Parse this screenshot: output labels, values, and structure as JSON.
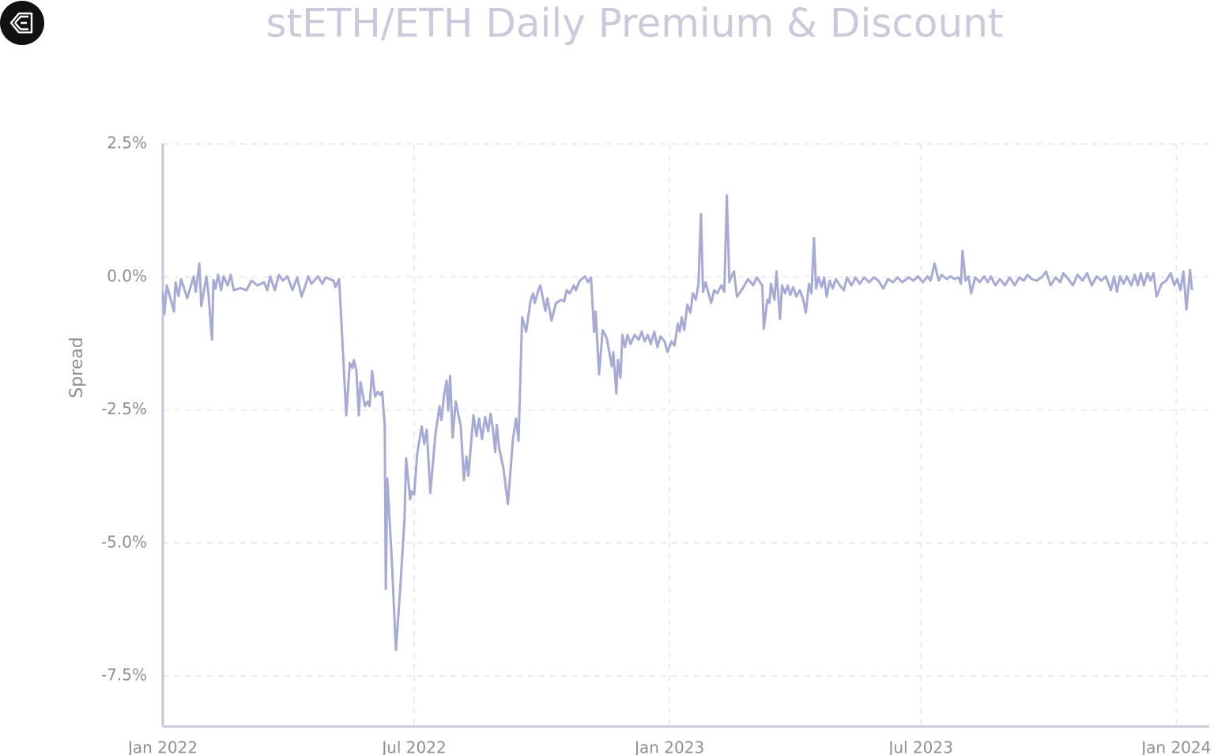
{
  "chart_data": {
    "type": "line",
    "title": "stETH/ETH Daily Premium & Discount",
    "y_label": "Spread",
    "color": "#a5aad6",
    "grid": true,
    "xlim": [
      2022.0,
      2024.065
    ],
    "xticks": [
      {
        "value": 2022.0,
        "label": "Jan 2022"
      },
      {
        "value": 2022.496,
        "label": "Jul 2022"
      },
      {
        "value": 2023.0,
        "label": "Jan 2023"
      },
      {
        "value": 2023.496,
        "label": "Jul 2023"
      },
      {
        "value": 2024.0,
        "label": "Jan 2024"
      }
    ],
    "ylim": [
      -8.45,
      2.5
    ],
    "yticks": [
      {
        "value": 2.5,
        "label": "2.5%"
      },
      {
        "value": 0,
        "label": "0.0%"
      },
      {
        "value": -2.5,
        "label": "-2.5%"
      },
      {
        "value": -5,
        "label": "-5.0%"
      },
      {
        "value": -7.5,
        "label": "-7.5%"
      }
    ],
    "x": [
      2022.0,
      2022.003,
      2022.008,
      2022.022,
      2022.025,
      2022.031,
      2022.036,
      2022.048,
      2022.061,
      2022.065,
      2022.072,
      2022.076,
      2022.086,
      2022.09,
      2022.097,
      2022.1,
      2022.104,
      2022.109,
      2022.115,
      2022.12,
      2022.128,
      2022.134,
      2022.14,
      2022.153,
      2022.165,
      2022.175,
      2022.187,
      2022.2,
      2022.206,
      2022.212,
      2022.221,
      2022.229,
      2022.237,
      2022.246,
      2022.256,
      2022.265,
      2022.274,
      2022.287,
      2022.293,
      2022.306,
      2022.315,
      2022.321,
      2022.337,
      2022.341,
      2022.348,
      2022.362,
      2022.369,
      2022.374,
      2022.377,
      2022.382,
      2022.387,
      2022.39,
      2022.399,
      2022.404,
      2022.408,
      2022.413,
      2022.419,
      2022.424,
      2022.429,
      2022.433,
      2022.438,
      2022.44,
      2022.443,
      2022.452,
      2022.46,
      2022.469,
      2022.477,
      2022.48,
      2022.488,
      2022.491,
      2022.496,
      2022.502,
      2022.511,
      2022.516,
      2022.521,
      2022.528,
      2022.538,
      2022.546,
      2022.55,
      2022.555,
      2022.56,
      2022.563,
      2022.567,
      2022.572,
      2022.578,
      2022.588,
      2022.594,
      2022.599,
      2022.603,
      2022.613,
      2022.619,
      2022.624,
      2022.63,
      2022.636,
      2022.642,
      2022.647,
      2022.652,
      2022.656,
      2022.659,
      2022.664,
      2022.672,
      2022.681,
      2022.691,
      2022.697,
      2022.702,
      2022.709,
      2022.717,
      2022.726,
      2022.731,
      2022.734,
      2022.741,
      2022.745,
      2022.755,
      2022.759,
      2022.767,
      2022.776,
      2022.786,
      2022.792,
      2022.797,
      2022.803,
      2022.811,
      2022.815,
      2022.823,
      2022.833,
      2022.839,
      2022.845,
      2022.851,
      2022.854,
      2022.861,
      2022.868,
      2022.876,
      2022.886,
      2022.889,
      2022.895,
      2022.898,
      2022.903,
      2022.907,
      2022.912,
      2022.917,
      2022.923,
      2022.931,
      2022.939,
      2022.945,
      2022.951,
      2022.957,
      2022.963,
      2022.97,
      2022.976,
      2022.982,
      2022.99,
      2022.996,
      2023.004,
      2023.01,
      2023.016,
      2023.02,
      2023.024,
      2023.029,
      2023.035,
      2023.041,
      2023.046,
      2023.052,
      2023.057,
      2023.062,
      2023.066,
      2023.071,
      2023.077,
      2023.082,
      2023.088,
      2023.094,
      2023.102,
      2023.108,
      2023.113,
      2023.118,
      2023.122,
      2023.127,
      2023.133,
      2023.144,
      2023.155,
      2023.165,
      2023.172,
      2023.183,
      2023.186,
      2023.193,
      2023.197,
      2023.2,
      2023.207,
      2023.211,
      2023.218,
      2023.222,
      2023.228,
      2023.233,
      2023.238,
      2023.244,
      2023.25,
      2023.257,
      2023.263,
      2023.269,
      2023.275,
      2023.28,
      2023.285,
      2023.289,
      2023.294,
      2023.3,
      2023.305,
      2023.31,
      2023.316,
      2023.322,
      2023.328,
      2023.336,
      2023.344,
      2023.35,
      2023.359,
      2023.367,
      2023.375,
      2023.384,
      2023.394,
      2023.403,
      2023.412,
      2023.422,
      2023.431,
      2023.441,
      2023.45,
      2023.459,
      2023.472,
      2023.481,
      2023.49,
      2023.5,
      2023.509,
      2023.515,
      2023.523,
      2023.531,
      2023.537,
      2023.547,
      2023.554,
      2023.562,
      2023.57,
      2023.575,
      2023.578,
      2023.584,
      2023.59,
      2023.595,
      2023.603,
      2023.612,
      2023.621,
      2023.628,
      2023.634,
      2023.643,
      2023.652,
      2023.662,
      2023.671,
      2023.681,
      2023.69,
      2023.699,
      2023.706,
      2023.715,
      2023.724,
      2023.734,
      2023.743,
      2023.752,
      2023.762,
      2023.771,
      2023.777,
      2023.787,
      2023.796,
      2023.805,
      2023.815,
      2023.824,
      2023.833,
      2023.843,
      2023.852,
      2023.861,
      2023.871,
      2023.877,
      2023.883,
      2023.889,
      2023.896,
      2023.902,
      2023.911,
      2023.918,
      2023.924,
      2023.93,
      2023.936,
      2023.943,
      2023.949,
      2023.955,
      2023.961,
      2023.971,
      2023.98,
      2023.989,
      2023.996,
      2024.002,
      2024.008,
      2024.014,
      2024.02,
      2024.027,
      2024.031
    ],
    "values": [
      -0.28,
      -0.7,
      -0.16,
      -0.65,
      -0.1,
      -0.36,
      -0.04,
      -0.4,
      0.01,
      -0.28,
      0.25,
      -0.55,
      0.01,
      -0.31,
      -1.18,
      -0.06,
      -0.22,
      0.04,
      -0.25,
      0.01,
      -0.16,
      0.04,
      -0.25,
      -0.21,
      -0.25,
      -0.07,
      -0.16,
      -0.1,
      -0.25,
      0.01,
      -0.25,
      0.04,
      -0.07,
      0.01,
      -0.25,
      -0.01,
      -0.37,
      0.01,
      -0.13,
      0.01,
      -0.13,
      -0.01,
      -0.07,
      -0.19,
      -0.04,
      -2.6,
      -1.62,
      -1.71,
      -1.56,
      -1.77,
      -2.6,
      -1.98,
      -2.43,
      -2.34,
      -2.43,
      -1.77,
      -2.25,
      -2.16,
      -2.22,
      -2.16,
      -2.81,
      -5.86,
      -3.79,
      -5.34,
      -7.01,
      -5.79,
      -4.54,
      -3.41,
      -4.18,
      -4.03,
      -4.09,
      -3.32,
      -2.81,
      -3.14,
      -2.87,
      -4.06,
      -2.96,
      -2.43,
      -2.69,
      -2.22,
      -1.95,
      -2.51,
      -1.86,
      -3.02,
      -2.34,
      -2.81,
      -3.82,
      -3.38,
      -3.74,
      -2.6,
      -2.99,
      -2.66,
      -3.05,
      -2.63,
      -2.9,
      -2.57,
      -2.9,
      -3.29,
      -2.78,
      -3.23,
      -3.59,
      -4.27,
      -3.05,
      -2.66,
      -3.08,
      -0.76,
      -1.03,
      -0.43,
      -0.31,
      -0.49,
      -0.25,
      -0.16,
      -0.64,
      -0.4,
      -0.82,
      -0.49,
      -0.43,
      -0.46,
      -0.25,
      -0.31,
      -0.16,
      -0.25,
      -0.07,
      0.01,
      -0.1,
      -0.01,
      -1.03,
      -0.65,
      -1.83,
      -1.0,
      -1.15,
      -1.68,
      -1.41,
      -2.19,
      -1.56,
      -1.89,
      -1.09,
      -1.32,
      -1.09,
      -1.26,
      -1.09,
      -1.18,
      -1.03,
      -1.21,
      -1.09,
      -1.26,
      -1.03,
      -1.32,
      -1.12,
      -1.21,
      -1.41,
      -1.21,
      -1.29,
      -0.88,
      -1.03,
      -0.76,
      -1.0,
      -0.52,
      -0.67,
      -0.31,
      -0.43,
      -0.13,
      1.18,
      -0.28,
      -0.1,
      -0.31,
      -0.49,
      -0.25,
      -0.31,
      -0.16,
      -0.28,
      1.53,
      -0.1,
      0.01,
      0.1,
      -0.37,
      -0.22,
      -0.04,
      -0.16,
      -0.01,
      -0.16,
      -0.97,
      -0.43,
      -0.49,
      -0.13,
      -0.43,
      0.1,
      -0.79,
      -0.16,
      -0.31,
      -0.16,
      -0.34,
      -0.19,
      -0.37,
      -0.25,
      -0.4,
      -0.67,
      -0.13,
      -0.31,
      0.73,
      -0.22,
      -0.01,
      -0.19,
      -0.01,
      -0.37,
      -0.07,
      -0.22,
      -0.04,
      -0.16,
      -0.25,
      -0.01,
      -0.16,
      -0.01,
      -0.13,
      -0.01,
      -0.1,
      -0.01,
      -0.07,
      -0.22,
      -0.04,
      -0.1,
      -0.01,
      -0.1,
      -0.01,
      -0.07,
      0.01,
      -0.1,
      0.01,
      -0.07,
      0.25,
      -0.07,
      0.04,
      -0.04,
      0.01,
      -0.04,
      -0.01,
      -0.13,
      0.49,
      -0.07,
      0.01,
      -0.31,
      -0.01,
      -0.1,
      0.01,
      -0.1,
      0.01,
      -0.16,
      -0.04,
      -0.16,
      -0.01,
      -0.16,
      -0.01,
      -0.07,
      0.04,
      -0.04,
      -0.07,
      -0.01,
      0.1,
      -0.16,
      -0.01,
      -0.1,
      0.07,
      -0.04,
      -0.16,
      0.04,
      -0.07,
      0.07,
      -0.16,
      0.01,
      -0.07,
      0.01,
      -0.25,
      0.01,
      -0.28,
      0.01,
      -0.13,
      0.01,
      -0.16,
      0.04,
      -0.16,
      0.07,
      -0.16,
      0.07,
      -0.07,
      0.07,
      -0.37,
      -0.13,
      -0.07,
      0.07,
      -0.16,
      -0.04,
      -0.25,
      0.1,
      -0.61,
      0.13,
      -0.25
    ]
  }
}
